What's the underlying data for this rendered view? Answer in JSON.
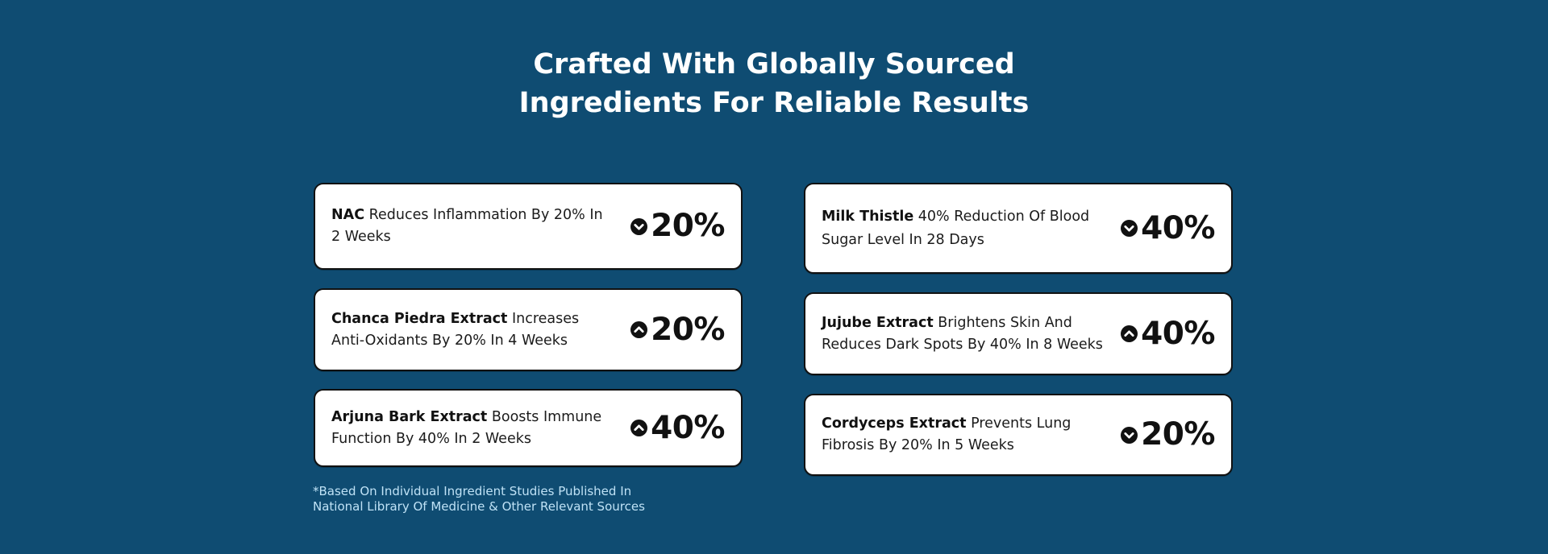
{
  "headline": {
    "line1": "Crafted With Globally Sourced",
    "line2": "Ingredients For Reliable Results"
  },
  "cards": [
    {
      "ingredient": "NAC",
      "description": "Reduces Inflammation By 20% In 2 Weeks",
      "value": "20%",
      "direction": "down",
      "icon": "chevron-down-circle-icon"
    },
    {
      "ingredient": "Chanca Piedra Extract",
      "description": "Increases Anti-Oxidants By 20% In 4 Weeks",
      "value": "20%",
      "direction": "up",
      "icon": "chevron-up-circle-icon"
    },
    {
      "ingredient": "Arjuna Bark Extract",
      "description": "Boosts Immune Function By 40% In 2 Weeks",
      "value": "40%",
      "direction": "up",
      "icon": "chevron-up-circle-icon"
    },
    {
      "ingredient": "Milk Thistle",
      "description": "40% Reduction Of Blood Sugar Level In 28 Days",
      "value": "40%",
      "direction": "down",
      "icon": "chevron-down-circle-icon"
    },
    {
      "ingredient": "Jujube Extract",
      "description": "Brightens Skin And Reduces Dark Spots By 40% In 8 Weeks",
      "value": "40%",
      "direction": "up",
      "icon": "chevron-up-circle-icon"
    },
    {
      "ingredient": "Cordyceps Extract",
      "description": "Prevents Lung Fibrosis By 20% In 5 Weeks",
      "value": "20%",
      "direction": "down",
      "icon": "chevron-down-circle-icon"
    }
  ],
  "footnote": {
    "line1": "*Based On Individual Ingredient Studies Published In",
    "line2": "National Library Of Medicine & Other Relevant Sources"
  },
  "colors": {
    "background": "#0f4c72",
    "card": "#ffffff",
    "footnote": "#bfe2f6"
  }
}
